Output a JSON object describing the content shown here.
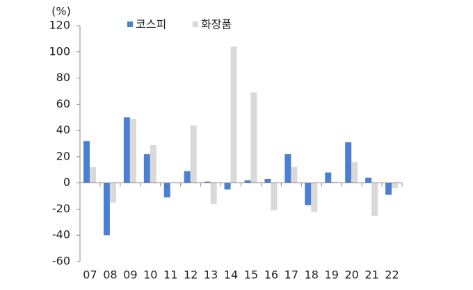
{
  "chart_data": {
    "type": "bar",
    "y_label": "(%)",
    "categories": [
      "07",
      "08",
      "09",
      "10",
      "11",
      "12",
      "13",
      "14",
      "15",
      "16",
      "17",
      "18",
      "19",
      "20",
      "21",
      "22"
    ],
    "series": [
      {
        "name": "코스피",
        "color": "#4a7fd4",
        "values": [
          32,
          -40,
          50,
          22,
          -11,
          9,
          1,
          -5,
          2,
          3,
          22,
          -17,
          8,
          31,
          4,
          -9
        ]
      },
      {
        "name": "화장품",
        "color": "#d9d9d9",
        "values": [
          12,
          -15,
          49,
          29,
          0,
          44,
          -16,
          104,
          69,
          -21,
          12,
          -22,
          1,
          16,
          -25,
          -4
        ]
      }
    ],
    "ylim": [
      -60,
      120
    ],
    "yticks": [
      -60,
      -40,
      -20,
      0,
      20,
      40,
      60,
      80,
      100,
      120
    ],
    "grid": false
  }
}
